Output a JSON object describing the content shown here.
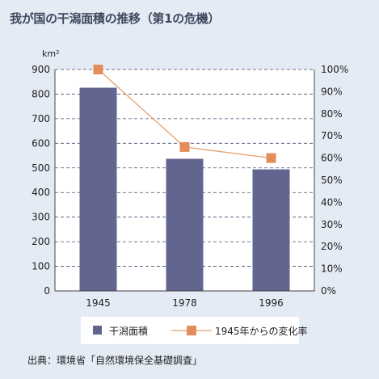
{
  "title": "我が国の干潟面積の推移（第1の危機）",
  "source": "出典：環境省「自然環境保全基礎調査」",
  "colors": {
    "bar": "#636591",
    "line": "#e8a06c",
    "marker": "#e58d5a",
    "background": "#e4ebf5"
  },
  "chart_data": {
    "type": "bar",
    "categories": [
      "1945",
      "1978",
      "1996"
    ],
    "series": [
      {
        "name": "干潟面積",
        "type": "bar",
        "axis": "left",
        "values": [
          826,
          537,
          494
        ]
      },
      {
        "name": "1945年からの変化率",
        "type": "line",
        "axis": "right",
        "values": [
          100,
          65,
          60
        ]
      }
    ],
    "y_left": {
      "unit": "km²",
      "range": [
        0,
        900
      ],
      "ticks": [
        "0",
        "100",
        "200",
        "300",
        "400",
        "500",
        "600",
        "700",
        "800",
        "900"
      ]
    },
    "y_right": {
      "range": [
        0,
        100
      ],
      "ticks": [
        "0%",
        "10%",
        "20%",
        "30%",
        "40%",
        "50%",
        "60%",
        "70%",
        "80%",
        "90%",
        "100%"
      ]
    },
    "grid": "horizontal dashed",
    "legend_position": "bottom"
  }
}
